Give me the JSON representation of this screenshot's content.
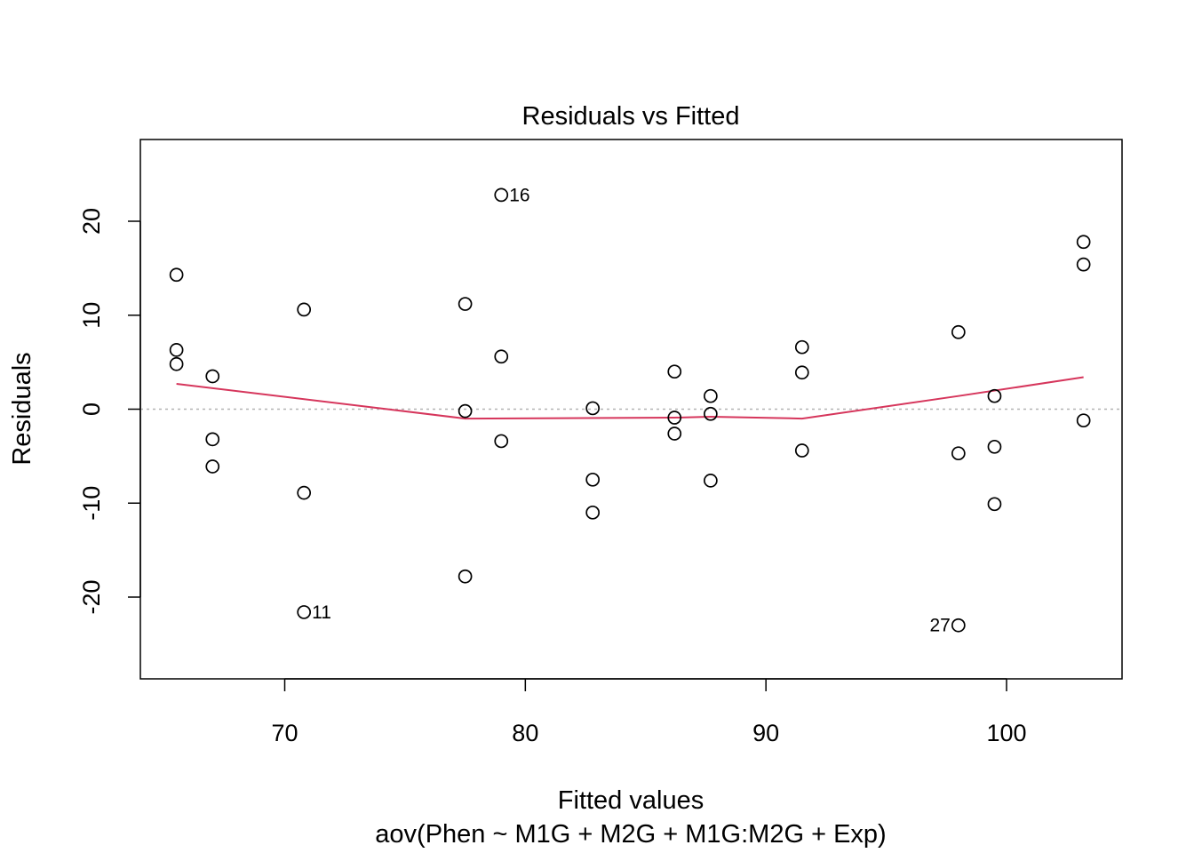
{
  "chart_data": {
    "type": "scatter",
    "title": "Residuals vs Fitted",
    "xlabel": "Fitted values",
    "subtitle": "aov(Phen ~ M1G + M2G + M1G:M2G + Exp)",
    "ylabel": "Residuals",
    "xlim": [
      64,
      104.8
    ],
    "ylim": [
      -28.7,
      28.7
    ],
    "xticks": [
      70,
      80,
      90,
      100
    ],
    "yticks": [
      -20,
      -10,
      0,
      10,
      20
    ],
    "xtick_labels": [
      "70",
      "80",
      "90",
      "100"
    ],
    "ytick_labels": [
      "-20",
      "-10",
      "0",
      "10",
      "20"
    ],
    "reference_line": {
      "y": 0,
      "style": "dotted",
      "color": "#b3b3b3"
    },
    "points": [
      {
        "x": 65.5,
        "y": 14.3
      },
      {
        "x": 65.5,
        "y": 6.3
      },
      {
        "x": 65.5,
        "y": 4.8
      },
      {
        "x": 67.0,
        "y": 3.5
      },
      {
        "x": 67.0,
        "y": -3.2
      },
      {
        "x": 67.0,
        "y": -6.1
      },
      {
        "x": 70.8,
        "y": 10.6
      },
      {
        "x": 70.8,
        "y": -8.9
      },
      {
        "x": 70.8,
        "y": -21.6,
        "label": "11",
        "label_side": "right"
      },
      {
        "x": 77.5,
        "y": 11.2
      },
      {
        "x": 77.5,
        "y": -0.2
      },
      {
        "x": 77.5,
        "y": -17.8
      },
      {
        "x": 79.0,
        "y": 22.8,
        "label": "16",
        "label_side": "right"
      },
      {
        "x": 79.0,
        "y": 5.6
      },
      {
        "x": 79.0,
        "y": -3.4
      },
      {
        "x": 82.8,
        "y": 0.1
      },
      {
        "x": 82.8,
        "y": -7.5
      },
      {
        "x": 82.8,
        "y": -11.0
      },
      {
        "x": 86.2,
        "y": 4.0
      },
      {
        "x": 86.2,
        "y": -0.9
      },
      {
        "x": 86.2,
        "y": -2.6
      },
      {
        "x": 87.7,
        "y": 1.4
      },
      {
        "x": 87.7,
        "y": -0.5
      },
      {
        "x": 87.7,
        "y": -7.6
      },
      {
        "x": 91.5,
        "y": 6.6
      },
      {
        "x": 91.5,
        "y": 3.9
      },
      {
        "x": 91.5,
        "y": -4.4
      },
      {
        "x": 98.0,
        "y": 8.2
      },
      {
        "x": 98.0,
        "y": -4.7
      },
      {
        "x": 98.0,
        "y": -23.0,
        "label": "27",
        "label_side": "left"
      },
      {
        "x": 99.5,
        "y": 1.4
      },
      {
        "x": 99.5,
        "y": -4.0
      },
      {
        "x": 99.5,
        "y": -10.1
      },
      {
        "x": 103.2,
        "y": 17.8
      },
      {
        "x": 103.2,
        "y": 15.4
      },
      {
        "x": 103.2,
        "y": -1.2
      }
    ],
    "smoother": {
      "color": "#d6365c",
      "points": [
        [
          65.5,
          2.7
        ],
        [
          77.5,
          -1.0
        ],
        [
          86.2,
          -0.9
        ],
        [
          87.7,
          -0.8
        ],
        [
          91.5,
          -1.0
        ],
        [
          98.0,
          1.4
        ],
        [
          103.2,
          3.4
        ]
      ]
    }
  }
}
